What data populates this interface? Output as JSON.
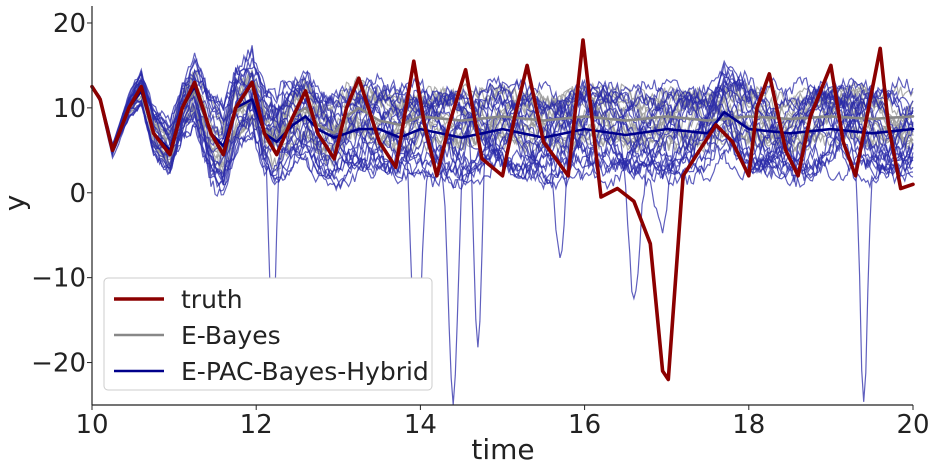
{
  "chart_data": {
    "type": "line",
    "title": "",
    "xlabel": "time",
    "ylabel": "y",
    "xlim": [
      10,
      20
    ],
    "ylim": [
      -25,
      22
    ],
    "xticks": [
      10,
      12,
      14,
      16,
      18,
      20
    ],
    "xtick_labels": [
      "10",
      "12",
      "14",
      "16",
      "18",
      "20"
    ],
    "yticks": [
      20,
      10,
      0,
      -10,
      -20
    ],
    "ytick_labels": [
      "20",
      "10",
      "0",
      "−10",
      "−20"
    ],
    "grid": false,
    "legend": {
      "position": "lower-left",
      "entries": [
        {
          "label": "truth",
          "color": "#8b0000"
        },
        {
          "label": "E-Bayes",
          "color": "#888888"
        },
        {
          "label": "E-PAC-Bayes-Hybrid",
          "color": "#00008b"
        }
      ]
    },
    "series": [
      {
        "name": "truth",
        "color": "#8b0000",
        "x": [
          10.0,
          10.1,
          10.25,
          10.45,
          10.6,
          10.75,
          10.95,
          11.1,
          11.25,
          11.45,
          11.6,
          11.75,
          11.95,
          12.1,
          12.25,
          12.45,
          12.6,
          12.75,
          12.95,
          13.1,
          13.25,
          13.5,
          13.7,
          13.92,
          14.05,
          14.2,
          14.35,
          14.55,
          14.75,
          15.0,
          15.15,
          15.3,
          15.5,
          15.8,
          15.98,
          16.1,
          16.2,
          16.4,
          16.6,
          16.8,
          16.95,
          17.02,
          17.2,
          17.4,
          17.6,
          17.8,
          18.0,
          18.1,
          18.25,
          18.45,
          18.6,
          18.75,
          19.0,
          19.15,
          19.3,
          19.5,
          19.6,
          19.7,
          19.85,
          20.0
        ],
        "y": [
          12.5,
          11,
          5,
          10,
          12.5,
          7,
          4.5,
          10,
          13,
          7,
          4.5,
          10,
          13,
          7,
          4.5,
          9,
          12,
          7,
          4,
          10,
          13.5,
          6,
          3,
          15.5,
          8,
          2,
          8,
          14.5,
          4,
          2,
          9,
          15,
          6,
          2,
          18,
          8,
          -0.5,
          0.5,
          -1,
          -6,
          -21,
          -22,
          2,
          5,
          8,
          6,
          2,
          10,
          14,
          5,
          2,
          9,
          15,
          6,
          2,
          12,
          17,
          8,
          0.5,
          1
        ]
      },
      {
        "name": "E-Bayes",
        "color": "#888888",
        "x": [
          10.0,
          10.1,
          10.25,
          10.45,
          10.6,
          10.75,
          10.95,
          11.1,
          11.25,
          11.45,
          11.6,
          11.75,
          11.95,
          12.1,
          12.25,
          12.45,
          12.6,
          12.75,
          12.95,
          13.1,
          13.25,
          13.5,
          13.75,
          14.0,
          14.5,
          15.0,
          15.5,
          16.0,
          16.5,
          17.0,
          17.5,
          18.0,
          18.5,
          19.0,
          19.5,
          20.0
        ],
        "y": [
          12.5,
          11,
          5,
          10,
          12,
          7,
          5,
          10,
          12,
          7,
          5.5,
          9.5,
          11,
          7.5,
          6,
          9,
          10,
          8,
          7,
          9,
          10,
          8.5,
          8,
          9,
          8.5,
          9,
          8.5,
          9,
          8.5,
          9,
          8.5,
          9,
          8.7,
          9,
          8.7,
          9
        ]
      },
      {
        "name": "E-PAC-Bayes-Hybrid",
        "color": "#00008b",
        "x": [
          10.0,
          10.1,
          10.25,
          10.45,
          10.6,
          10.75,
          10.95,
          11.1,
          11.25,
          11.45,
          11.6,
          11.75,
          11.95,
          12.1,
          12.25,
          12.45,
          12.6,
          12.75,
          12.95,
          13.1,
          13.25,
          13.5,
          13.75,
          14.0,
          14.5,
          15.0,
          15.5,
          16.0,
          16.5,
          17.0,
          17.5,
          17.7,
          18.0,
          18.5,
          19.0,
          19.5,
          20.0
        ],
        "y": [
          12.5,
          11,
          5,
          10,
          12,
          7,
          5,
          10,
          12.5,
          7,
          5.5,
          10,
          11,
          7,
          6,
          8,
          9,
          7.5,
          6.5,
          7,
          7.5,
          7.5,
          6.5,
          7.5,
          6.5,
          7.5,
          6.5,
          7.5,
          6.8,
          7.5,
          7,
          9.5,
          7.5,
          7,
          7.5,
          7,
          7.5
        ]
      }
    ]
  }
}
